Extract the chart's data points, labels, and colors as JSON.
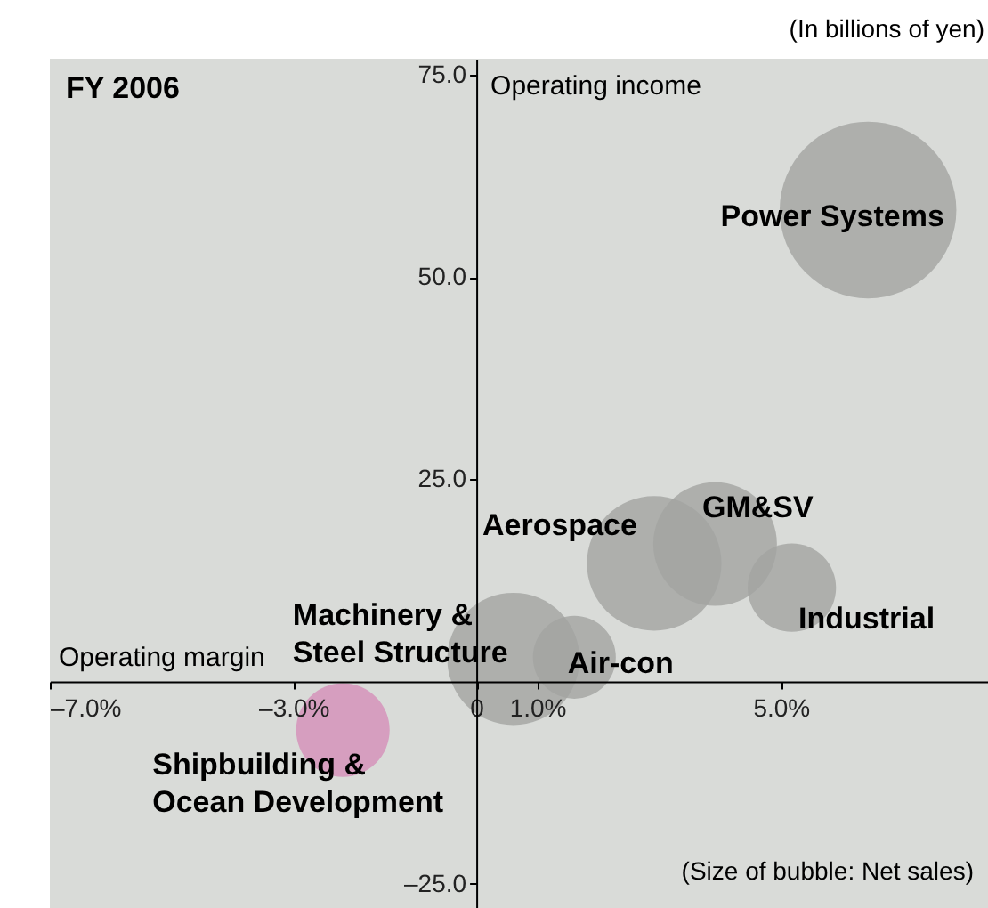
{
  "chart_data": {
    "type": "bubble",
    "title": "FY 2006",
    "xlabel": "Operating margin",
    "ylabel": "Operating income",
    "annotations": [
      "(In billions of yen)",
      "(Size of bubble: Net sales)"
    ],
    "xlim": [
      -7.0,
      8.4
    ],
    "ylim": [
      -28,
      77
    ],
    "xticks": [
      {
        "value": -7,
        "label": "–7.0%"
      },
      {
        "value": -3,
        "label": "–3.0%"
      },
      {
        "value": 0,
        "label": "0"
      },
      {
        "value": 1,
        "label": "1.0%"
      },
      {
        "value": 5,
        "label": "5.0%"
      }
    ],
    "yticks": [
      {
        "value": 75,
        "label": "75.0"
      },
      {
        "value": 50,
        "label": "50.0"
      },
      {
        "value": 25,
        "label": "25.0"
      },
      {
        "value": -25,
        "label": "–25.0"
      }
    ],
    "series": [
      {
        "name": "Power Systems",
        "color": "#a3a4a1",
        "x": [
          6.43
        ],
        "values": [
          58.3
        ],
        "sizes": [
          1
        ]
      },
      {
        "name": "Aerospace",
        "color": "#a3a4a1",
        "x": [
          2.92
        ],
        "values": [
          14.6
        ],
        "sizes": [
          0.58
        ]
      },
      {
        "name": "GM&SV",
        "color": "#a3a4a1",
        "x": [
          3.92
        ],
        "values": [
          17.0
        ],
        "sizes": [
          0.49
        ]
      },
      {
        "name": "Industrial",
        "color": "#a3a4a1",
        "x": [
          5.18
        ],
        "values": [
          11.6
        ],
        "sizes": [
          0.25
        ]
      },
      {
        "name": "Machinery &\nSteel Structure",
        "color": "#a3a4a1",
        "x": [
          0.61
        ],
        "values": [
          2.8
        ],
        "sizes": [
          0.56
        ]
      },
      {
        "name": "Air-con",
        "color": "#a3a4a1",
        "x": [
          1.61
        ],
        "values": [
          3.0
        ],
        "sizes": [
          0.22
        ]
      },
      {
        "name": "Shipbuilding &\nOcean Development",
        "color": "#d58fb9",
        "x": [
          -2.19
        ],
        "values": [
          -6.0
        ],
        "sizes": [
          0.28
        ]
      }
    ]
  }
}
